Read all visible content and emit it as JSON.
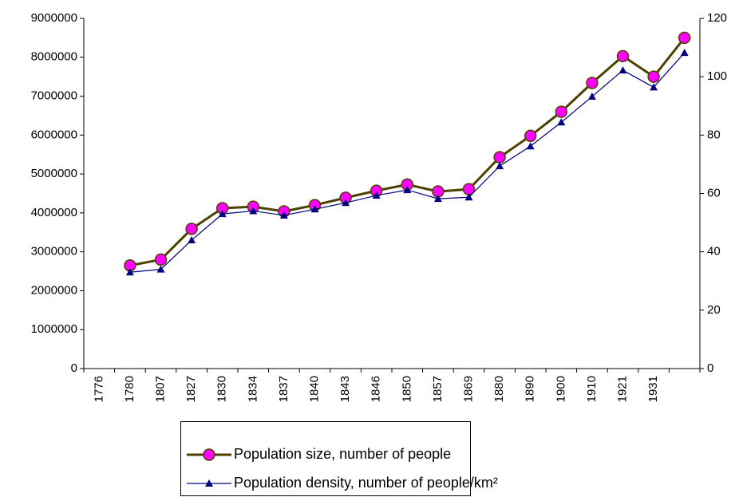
{
  "chart_data": {
    "type": "line",
    "categories": [
      "1776",
      "1780",
      "1807",
      "1827",
      "1830",
      "1834",
      "1837",
      "1840",
      "1843",
      "1846",
      "1850",
      "1857",
      "1869",
      "1880",
      "1890",
      "1900",
      "1910",
      "1921",
      "1931",
      null
    ],
    "series": [
      {
        "name": "Population size, number of people",
        "color": "#4d4000",
        "marker_color": "#ff00ff",
        "marker": "circle",
        "values": [
          null,
          2650000,
          2800000,
          3590000,
          4120000,
          4160000,
          4040000,
          4200000,
          4390000,
          4570000,
          4730000,
          4550000,
          4610000,
          5430000,
          5980000,
          6600000,
          7340000,
          8030000,
          7500000,
          8500000
        ]
      },
      {
        "name": "Population density, number of people/km²",
        "color": "#000080",
        "marker_color": "#000080",
        "marker": "triangle",
        "axis": "y2",
        "values": [
          null,
          33,
          34,
          44,
          53,
          54,
          52.5,
          54.6,
          56.8,
          59.3,
          61.2,
          58.2,
          58.7,
          69.4,
          76.2,
          84.4,
          93.2,
          102.2,
          96.4,
          108.2
        ]
      }
    ],
    "ylim": [
      0,
      9000000
    ],
    "yticks": [
      0,
      1000000,
      2000000,
      3000000,
      4000000,
      5000000,
      6000000,
      7000000,
      8000000,
      9000000
    ],
    "y2lim": [
      0,
      120
    ],
    "y2ticks": [
      0,
      20,
      40,
      60,
      80,
      100,
      120
    ],
    "grid": false,
    "legend": "bottom"
  }
}
